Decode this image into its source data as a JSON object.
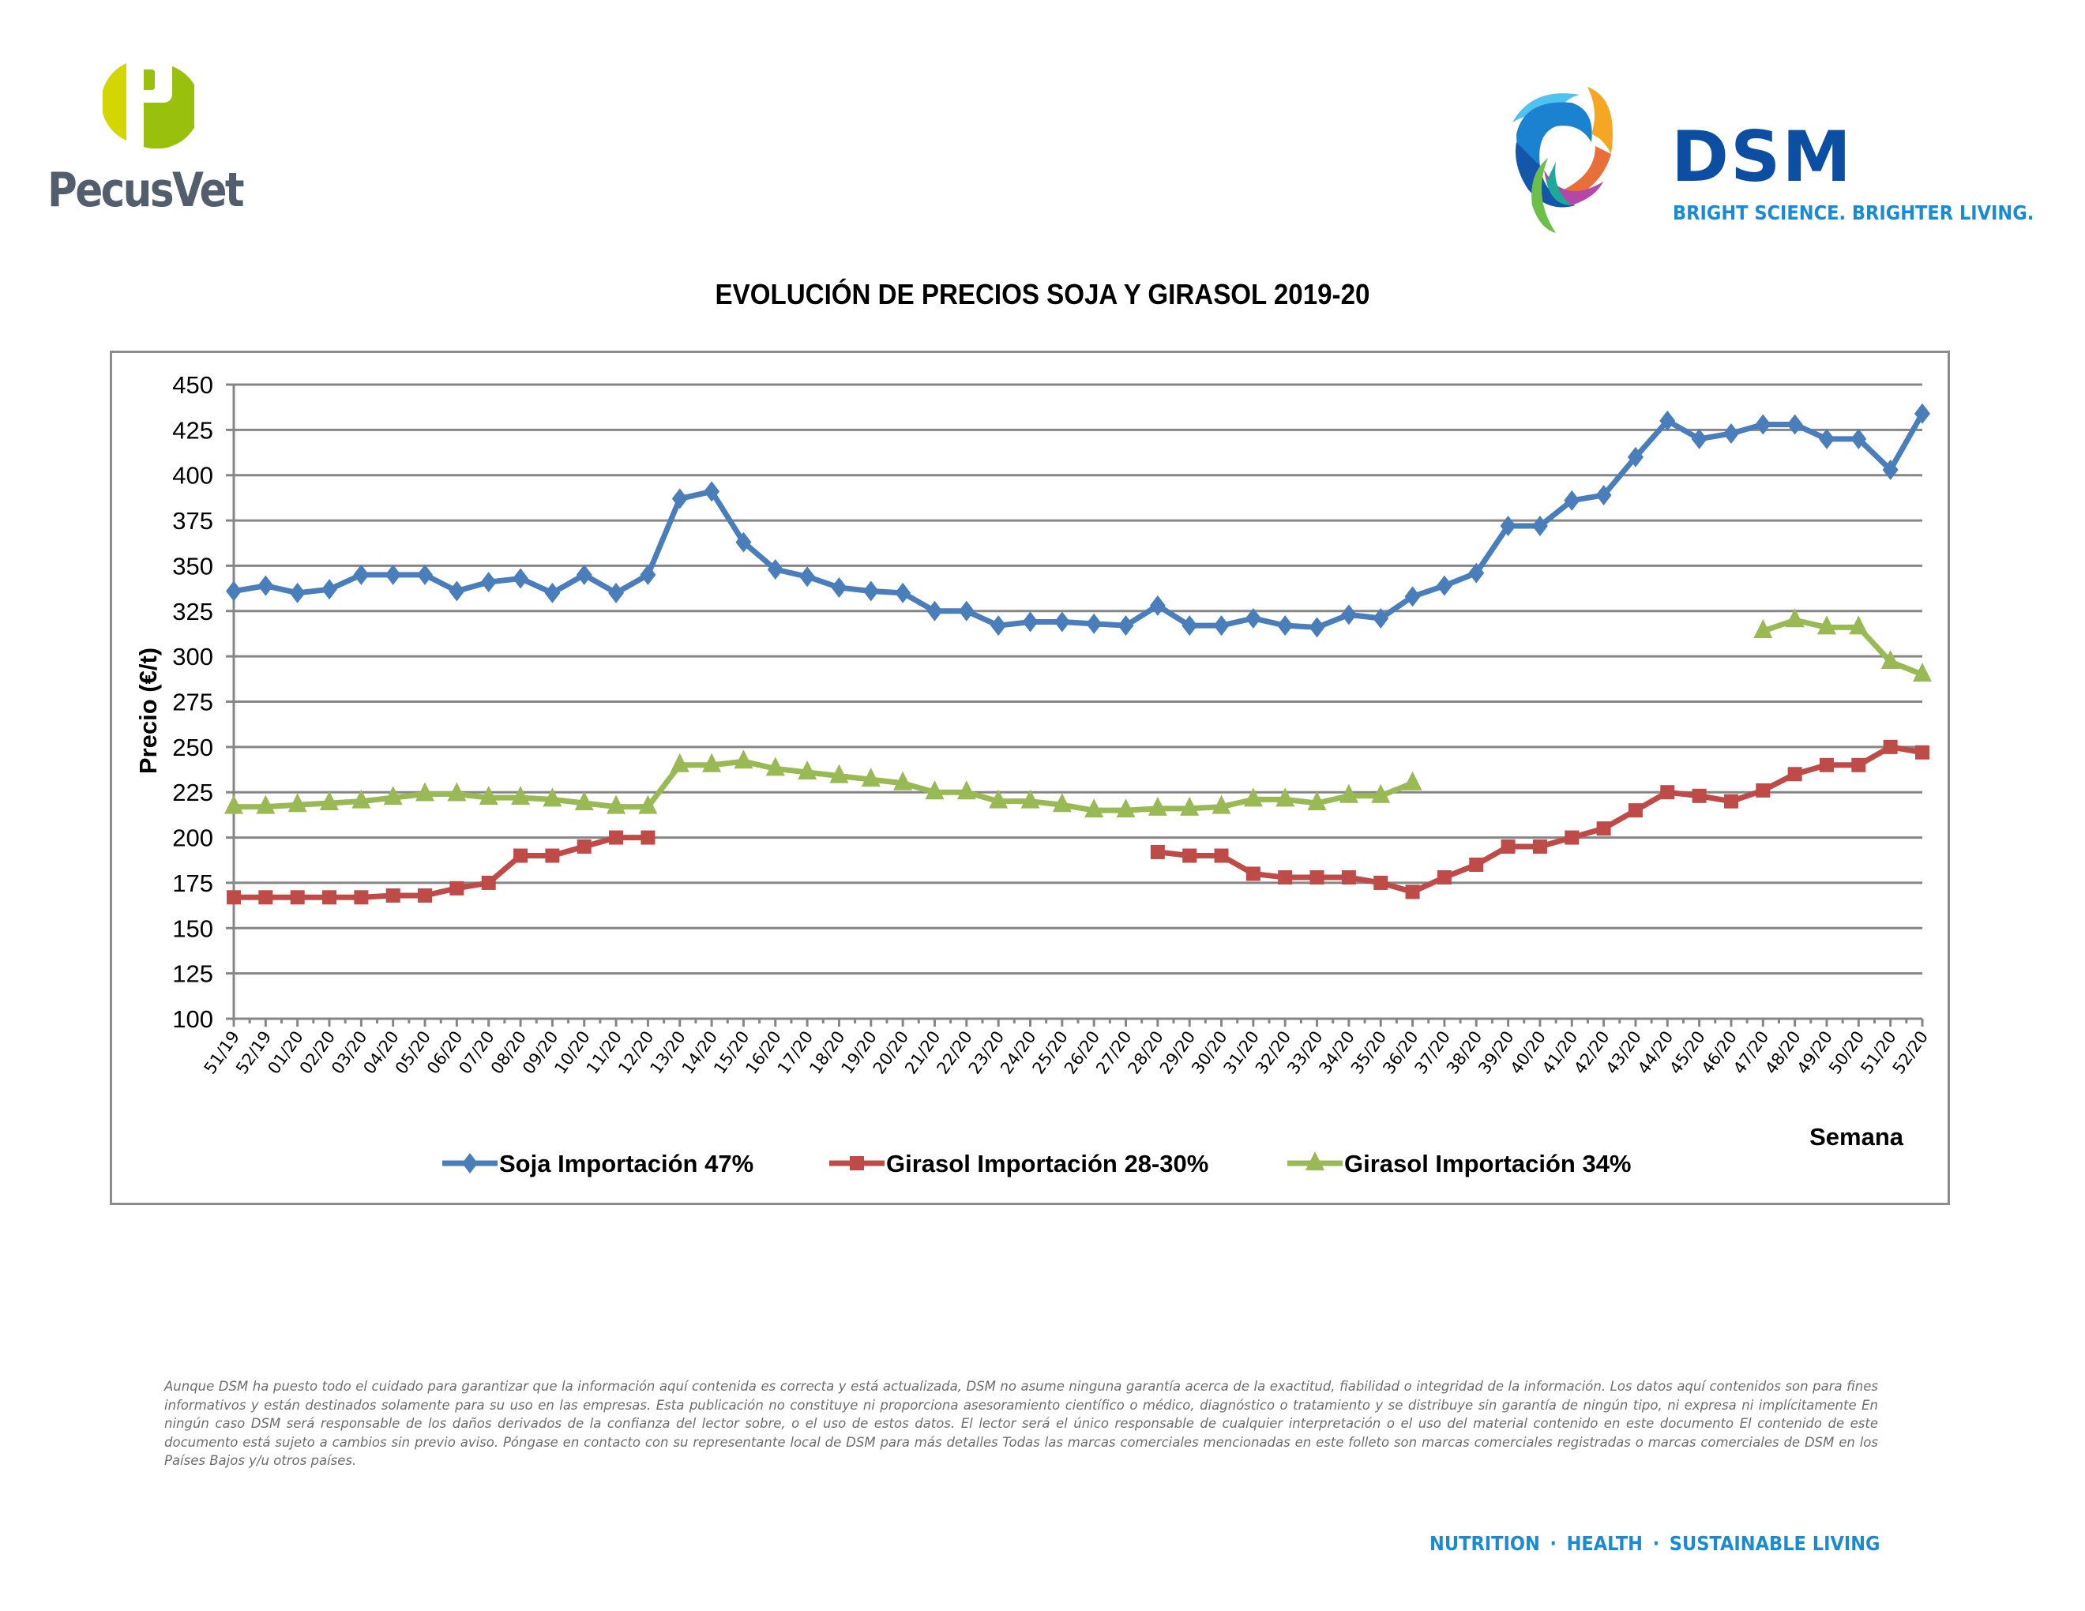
{
  "header": {
    "left_logo": {
      "name": "PecusVet",
      "icon": "pecusvet-p-logo-icon"
    },
    "right_logo": {
      "name": "DSM",
      "tagline": "BRIGHT SCIENCE. BRIGHTER LIVING.",
      "icon": "dsm-swirl-logo-icon"
    }
  },
  "colors": {
    "soja": "#4a7ebb",
    "girasol_28_30": "#be4b48",
    "girasol_34": "#98b954",
    "grid": "#868686",
    "pecusvet_gray": "#525e6c",
    "dsm_blue": "#0c4ea2",
    "dsm_light_blue": "#1a8ad4"
  },
  "chart_data": {
    "type": "line",
    "title": "EVOLUCIÓN DE PRECIOS SOJA Y GIRASOL 2019-20",
    "xlabel": "Semana",
    "ylabel": "Precio (€/t)",
    "ylim": [
      100,
      450
    ],
    "yticks": [
      100,
      125,
      150,
      175,
      200,
      225,
      250,
      275,
      300,
      325,
      350,
      375,
      400,
      425,
      450
    ],
    "grid": true,
    "legend_position": "bottom",
    "categories": [
      "51/19",
      "52/19",
      "01/20",
      "02/20",
      "03/20",
      "04/20",
      "05/20",
      "06/20",
      "07/20",
      "08/20",
      "09/20",
      "10/20",
      "11/20",
      "12/20",
      "13/20",
      "14/20",
      "15/20",
      "16/20",
      "17/20",
      "18/20",
      "19/20",
      "20/20",
      "21/20",
      "22/20",
      "23/20",
      "24/20",
      "25/20",
      "26/20",
      "27/20",
      "28/20",
      "29/20",
      "30/20",
      "31/20",
      "32/20",
      "33/20",
      "34/20",
      "35/20",
      "36/20",
      "37/20",
      "38/20",
      "39/20",
      "40/20",
      "41/20",
      "42/20",
      "43/20",
      "44/20",
      "45/20",
      "46/20",
      "47/20",
      "48/20",
      "49/20",
      "50/20",
      "51/20",
      "52/20"
    ],
    "series": [
      {
        "name": "Soja Importación 47%",
        "marker": "diamond",
        "color": "#4a7ebb",
        "values": [
          336,
          339,
          335,
          337,
          345,
          345,
          345,
          336,
          341,
          343,
          335,
          345,
          335,
          345,
          387,
          391,
          363,
          348,
          344,
          338,
          336,
          335,
          325,
          325,
          317,
          319,
          319,
          318,
          317,
          328,
          317,
          317,
          321,
          317,
          316,
          323,
          321,
          333,
          339,
          346,
          372,
          372,
          386,
          389,
          410,
          430,
          420,
          423,
          428,
          428,
          420,
          420,
          403,
          434
        ]
      },
      {
        "name": "Girasol Importación 28-30%",
        "marker": "square",
        "color": "#be4b48",
        "values": [
          167,
          167,
          167,
          167,
          167,
          168,
          168,
          172,
          175,
          190,
          190,
          195,
          200,
          200,
          null,
          null,
          null,
          null,
          null,
          null,
          null,
          null,
          null,
          null,
          null,
          null,
          null,
          null,
          null,
          192,
          190,
          190,
          180,
          178,
          178,
          178,
          175,
          170,
          178,
          185,
          195,
          195,
          200,
          205,
          215,
          225,
          223,
          220,
          226,
          235,
          240,
          240,
          250,
          247
        ]
      },
      {
        "name": "Girasol Importación 34%",
        "marker": "triangle",
        "color": "#98b954",
        "values": [
          217,
          217,
          218,
          219,
          220,
          222,
          224,
          224,
          222,
          222,
          221,
          219,
          217,
          217,
          240,
          240,
          242,
          238,
          236,
          234,
          232,
          230,
          225,
          225,
          220,
          220,
          218,
          215,
          215,
          216,
          216,
          217,
          221,
          221,
          219,
          223,
          223,
          230,
          null,
          null,
          null,
          null,
          null,
          null,
          null,
          null,
          null,
          null,
          314,
          320,
          316,
          316,
          297,
          290
        ]
      }
    ]
  },
  "disclaimer": "Aunque DSM ha puesto todo el cuidado para garantizar que la información aquí contenida es correcta y está actualizada, DSM no asume ninguna garantía acerca de la exactitud, fiabilidad o integridad de la información. Los datos aquí contenidos son para fines informativos y están destinados solamente para su uso en las empresas. Esta publicación no constituye ni proporciona asesoramiento científico o médico, diagnóstico o tratamiento y se distribuye sin garantía de ningún tipo, ni expresa ni implícitamente En ningún caso DSM será responsable de los daños derivados de la confianza del lector sobre, o el uso de estos datos. El lector será el único responsable de cualquier interpretación o el uso del material contenido en este documento El contenido de este documento está sujeto a cambios sin previo aviso. Póngase en contacto con su representante local de DSM para más detalles Todas las marcas comerciales mencionadas en este folleto son marcas comerciales registradas o marcas comerciales de DSM en los Países Bajos y/u otros países.",
  "footer": {
    "items": [
      "NUTRITION",
      "HEALTH",
      "SUSTAINABLE LIVING"
    ],
    "separator": "·"
  }
}
